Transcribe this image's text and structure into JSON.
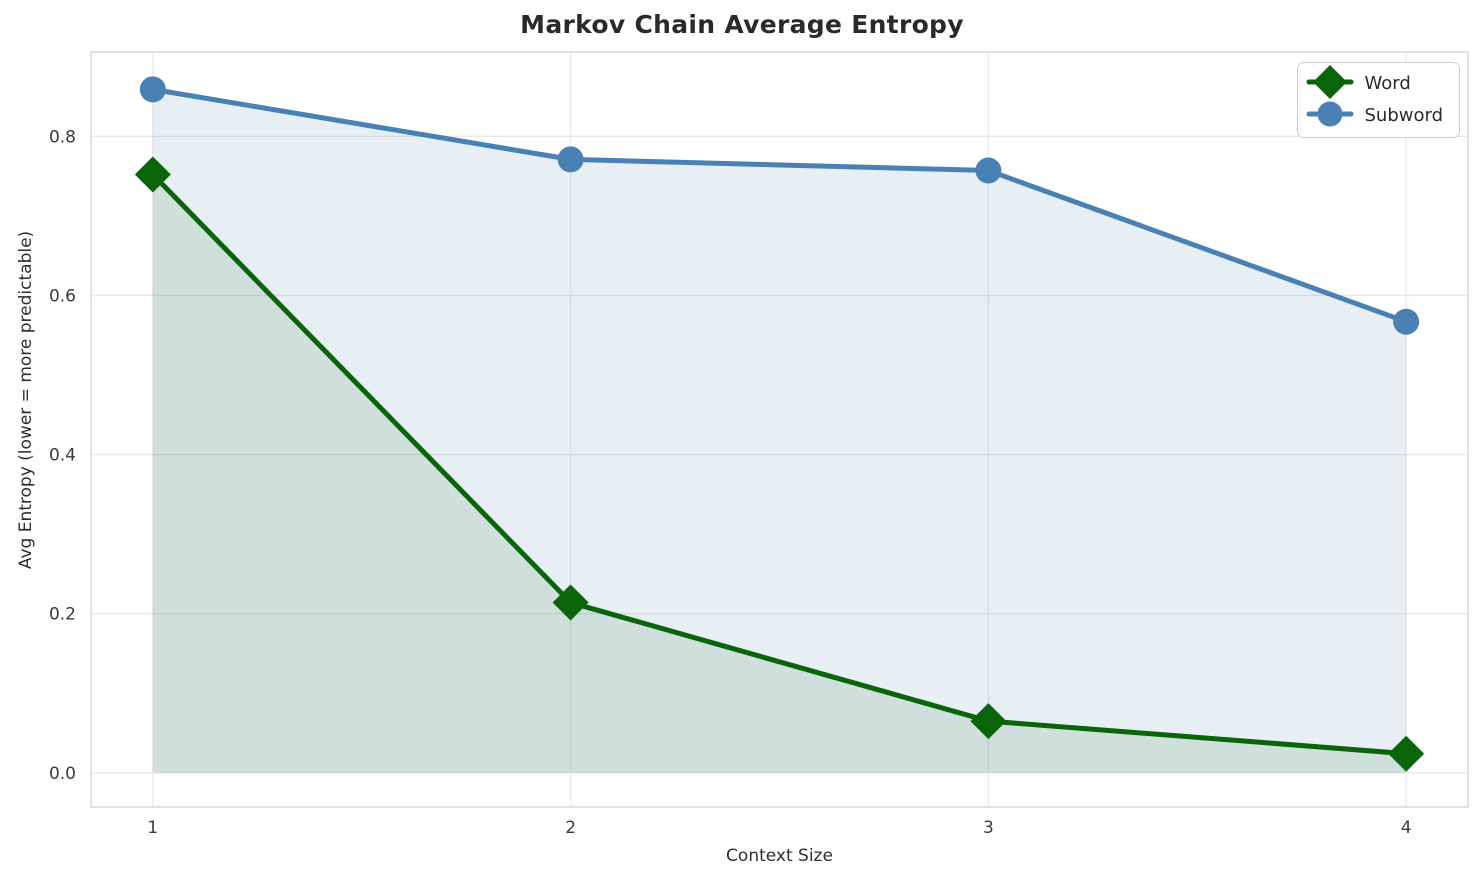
{
  "chart_data": {
    "type": "line",
    "title": "Markov Chain Average Entropy",
    "xlabel": "Context Size",
    "ylabel": "Avg Entropy (lower = more predictable)",
    "x": [
      1,
      2,
      3,
      4
    ],
    "series": [
      {
        "name": "Word",
        "values": [
          0.752,
          0.214,
          0.065,
          0.024
        ],
        "color": "#0a640a",
        "fill": "rgba(0,100,0,0.10)",
        "marker": "diamond"
      },
      {
        "name": "Subword",
        "values": [
          0.859,
          0.771,
          0.757,
          0.567
        ],
        "color": "#4a81b4",
        "fill": "rgba(70,130,180,0.13)",
        "marker": "circle"
      }
    ],
    "xticks": [
      1,
      2,
      3,
      4
    ],
    "xtick_labels": [
      "1",
      "2",
      "3",
      "4"
    ],
    "ytick_values": [
      0.0,
      0.2,
      0.4,
      0.6,
      0.8
    ],
    "ytick_labels": [
      "0.0",
      "0.2",
      "0.4",
      "0.6",
      "0.8"
    ],
    "xlim": [
      0.852,
      4.148
    ],
    "ylim": [
      -0.043,
      0.906
    ],
    "grid": true,
    "legend_position": "upper right",
    "colors": {
      "grid": "#e9e9e9",
      "spine": "#d6d6d6",
      "tick_text": "#3a3a3a",
      "title_text": "#2a2a2a"
    }
  }
}
